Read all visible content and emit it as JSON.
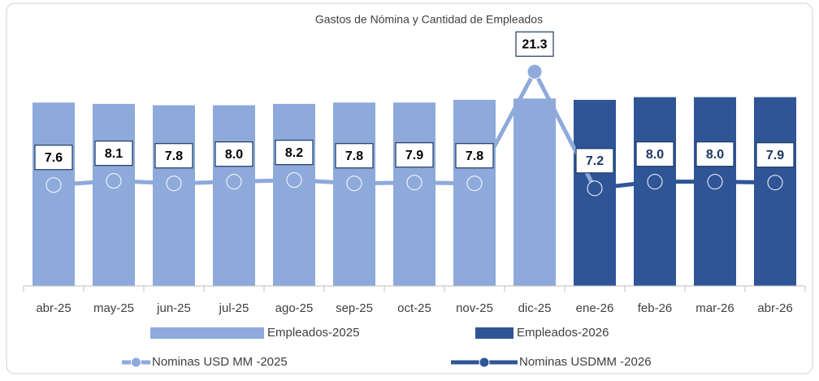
{
  "chart_data": {
    "type": "bar-line",
    "title": "Gastos de Nómina y  Cantidad de Empleados",
    "categories": [
      "abr-25",
      "may-25",
      "jun-25",
      "jul-25",
      "ago-25",
      "sep-25",
      "oct-25",
      "nov-25",
      "dic-25",
      "ene-26",
      "feb-26",
      "mar-26",
      "abr-26"
    ],
    "ylim": [
      0,
      100
    ],
    "y2lim": [
      -4.6,
      28
    ],
    "series": [
      {
        "name": "Empleados-2025",
        "type": "bar",
        "color": "#8eaadb",
        "values": [
          68,
          67.5,
          67,
          67,
          67.5,
          68,
          68,
          69,
          69.5,
          null,
          null,
          null,
          null
        ]
      },
      {
        "name": "Empleados-2026",
        "type": "bar",
        "color": "#2f5597",
        "values": [
          null,
          null,
          null,
          null,
          null,
          null,
          null,
          null,
          null,
          69,
          70,
          70,
          70
        ]
      },
      {
        "name": "Nominas USD MM -2025",
        "type": "line",
        "axis": "y2",
        "color": "#8eaadb",
        "label_color": "#000000",
        "values": [
          7.6,
          8.1,
          7.8,
          8.0,
          8.2,
          7.8,
          7.9,
          7.8,
          21.3,
          null,
          null,
          null,
          null
        ],
        "value_labels": [
          "7.6",
          "8.1",
          "7.8",
          "8.0",
          "8.2",
          "7.8",
          "7.9",
          "7.8",
          "21.3",
          null,
          null,
          null,
          null
        ]
      },
      {
        "name": "Nominas USDMM  -2026",
        "type": "line",
        "axis": "y2",
        "color": "#2f5597",
        "label_color": "#1f3864",
        "values": [
          null,
          null,
          null,
          null,
          null,
          null,
          null,
          null,
          null,
          7.2,
          8.0,
          8.0,
          7.9
        ],
        "value_labels": [
          null,
          null,
          null,
          null,
          null,
          null,
          null,
          null,
          null,
          "7.2",
          "8.0",
          "8.0",
          "7.9"
        ]
      }
    ]
  }
}
